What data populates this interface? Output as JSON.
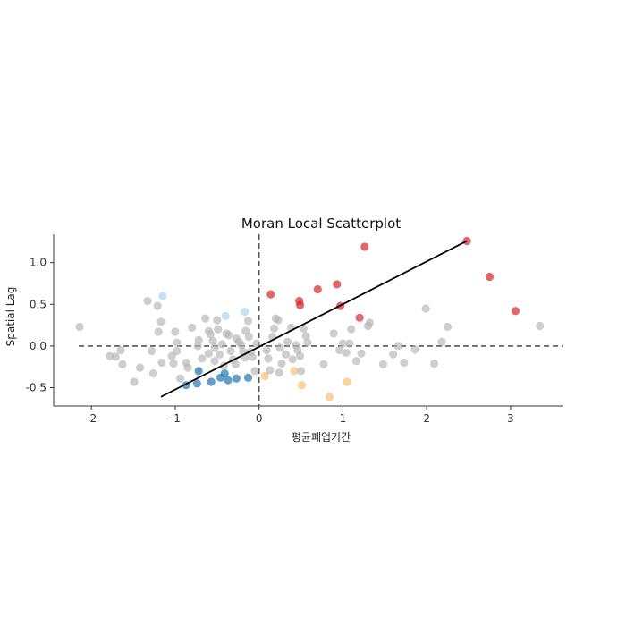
{
  "chart_data": {
    "type": "scatter",
    "title": "Moran Local Scatterplot",
    "xlabel": "평균폐업기간",
    "ylabel": "Spatial Lag",
    "xlim": [
      -2.45,
      3.62
    ],
    "ylim": [
      -0.72,
      1.34
    ],
    "x_ticks": [
      -2,
      -1,
      0,
      1,
      2,
      3
    ],
    "y_ticks": [
      -0.5,
      0.0,
      0.5,
      1.0
    ],
    "x_tick_labels": [
      "-2",
      "-1",
      "0",
      "1",
      "2",
      "3"
    ],
    "y_tick_labels": [
      "-0.5",
      "0.0",
      "0.5",
      "1.0"
    ],
    "reference_lines": {
      "x": 0,
      "y": 0,
      "style": "dashed"
    },
    "fit_line": {
      "x": [
        -1.17,
        2.48
      ],
      "y": [
        -0.61,
        1.26
      ]
    },
    "grid": false,
    "legend": "none",
    "colors": {
      "HH": "#d62728",
      "LL": "#1f77b4",
      "LH": "#a6d8f0",
      "HL": "#fdbf6f",
      "ns": "#b3b3b3",
      "reference": "#555555",
      "fit": "#000000"
    },
    "series": [
      {
        "quadrant": "HH",
        "points": [
          [
            1.26,
            1.19
          ],
          [
            2.48,
            1.26
          ],
          [
            0.14,
            0.62
          ],
          [
            0.48,
            0.54
          ],
          [
            0.49,
            0.49
          ],
          [
            0.7,
            0.68
          ],
          [
            0.93,
            0.74
          ],
          [
            0.97,
            0.48
          ],
          [
            1.2,
            0.34
          ],
          [
            2.75,
            0.83
          ],
          [
            3.06,
            0.42
          ]
        ]
      },
      {
        "quadrant": "LL",
        "points": [
          [
            -0.72,
            -0.3
          ],
          [
            -0.87,
            -0.47
          ],
          [
            -0.74,
            -0.45
          ],
          [
            -0.57,
            -0.43
          ],
          [
            -0.46,
            -0.38
          ],
          [
            -0.41,
            -0.33
          ],
          [
            -0.37,
            -0.41
          ],
          [
            -0.27,
            -0.39
          ],
          [
            -0.13,
            -0.38
          ]
        ]
      },
      {
        "quadrant": "LH",
        "points": [
          [
            -1.15,
            0.6
          ],
          [
            -0.4,
            0.36
          ],
          [
            -0.17,
            0.41
          ]
        ]
      },
      {
        "quadrant": "HL",
        "points": [
          [
            0.07,
            -0.36
          ],
          [
            0.42,
            -0.3
          ],
          [
            0.51,
            -0.47
          ],
          [
            0.84,
            -0.61
          ],
          [
            1.05,
            -0.43
          ]
        ]
      },
      {
        "quadrant": "ns",
        "points": [
          [
            -2.14,
            0.23
          ],
          [
            -1.78,
            -0.12
          ],
          [
            -1.71,
            -0.13
          ],
          [
            -1.65,
            -0.05
          ],
          [
            -1.63,
            -0.22
          ],
          [
            -1.49,
            -0.43
          ],
          [
            -1.42,
            -0.26
          ],
          [
            -1.33,
            0.54
          ],
          [
            -1.28,
            -0.06
          ],
          [
            -1.26,
            -0.33
          ],
          [
            -1.21,
            0.48
          ],
          [
            -1.2,
            0.17
          ],
          [
            -1.17,
            0.29
          ],
          [
            -1.16,
            -0.2
          ],
          [
            -1.04,
            -0.12
          ],
          [
            -1.02,
            -0.21
          ],
          [
            -0.98,
            0.04
          ],
          [
            -1.0,
            0.17
          ],
          [
            -0.98,
            -0.06
          ],
          [
            -0.94,
            -0.39
          ],
          [
            -0.87,
            -0.2
          ],
          [
            -0.85,
            -0.26
          ],
          [
            -0.8,
            0.22
          ],
          [
            -0.73,
            0.0
          ],
          [
            -0.72,
            0.07
          ],
          [
            -0.68,
            -0.15
          ],
          [
            -0.64,
            0.33
          ],
          [
            -0.6,
            0.18
          ],
          [
            -0.6,
            -0.09
          ],
          [
            -0.58,
            0.14
          ],
          [
            -0.55,
            0.06
          ],
          [
            -0.53,
            -0.02
          ],
          [
            -0.53,
            -0.18
          ],
          [
            -0.5,
            0.31
          ],
          [
            -0.49,
            0.2
          ],
          [
            -0.47,
            -0.1
          ],
          [
            -0.44,
            0.02
          ],
          [
            -0.42,
            -0.24
          ],
          [
            -0.39,
            0.15
          ],
          [
            -0.36,
            0.13
          ],
          [
            -0.34,
            -0.06
          ],
          [
            -0.31,
            -0.16
          ],
          [
            -0.28,
            -0.22
          ],
          [
            -0.27,
            0.09
          ],
          [
            -0.24,
            0.05
          ],
          [
            -0.21,
            0.01
          ],
          [
            -0.19,
            -0.07
          ],
          [
            -0.17,
            -0.14
          ],
          [
            -0.16,
            0.18
          ],
          [
            -0.13,
            0.3
          ],
          [
            -0.12,
            0.11
          ],
          [
            -0.1,
            -0.07
          ],
          [
            -0.08,
            -0.13
          ],
          [
            -0.05,
            -0.3
          ],
          [
            -0.03,
            0.03
          ],
          [
            0.09,
            -0.05
          ],
          [
            0.11,
            -0.15
          ],
          [
            0.13,
            -0.29
          ],
          [
            0.16,
            0.11
          ],
          [
            0.18,
            0.21
          ],
          [
            0.2,
            0.33
          ],
          [
            0.23,
            0.31
          ],
          [
            0.25,
            -0.02
          ],
          [
            0.27,
            -0.21
          ],
          [
            0.24,
            -0.32
          ],
          [
            0.32,
            -0.1
          ],
          [
            0.34,
            0.05
          ],
          [
            0.38,
            0.22
          ],
          [
            0.4,
            -0.16
          ],
          [
            0.44,
            0.01
          ],
          [
            0.46,
            -0.05
          ],
          [
            0.49,
            -0.12
          ],
          [
            0.5,
            -0.3
          ],
          [
            0.53,
            0.21
          ],
          [
            0.56,
            0.12
          ],
          [
            0.58,
            0.04
          ],
          [
            0.77,
            -0.22
          ],
          [
            0.89,
            0.15
          ],
          [
            0.96,
            -0.05
          ],
          [
            1.0,
            0.03
          ],
          [
            1.04,
            -0.08
          ],
          [
            1.08,
            0.03
          ],
          [
            1.1,
            0.2
          ],
          [
            1.16,
            -0.18
          ],
          [
            1.22,
            -0.09
          ],
          [
            1.3,
            0.24
          ],
          [
            1.32,
            0.28
          ],
          [
            1.48,
            -0.22
          ],
          [
            1.6,
            -0.1
          ],
          [
            1.66,
            0.0
          ],
          [
            1.73,
            -0.2
          ],
          [
            1.86,
            -0.04
          ],
          [
            1.99,
            0.45
          ],
          [
            2.09,
            -0.21
          ],
          [
            2.18,
            0.05
          ],
          [
            2.25,
            0.23
          ],
          [
            3.35,
            0.24
          ]
        ]
      }
    ]
  }
}
